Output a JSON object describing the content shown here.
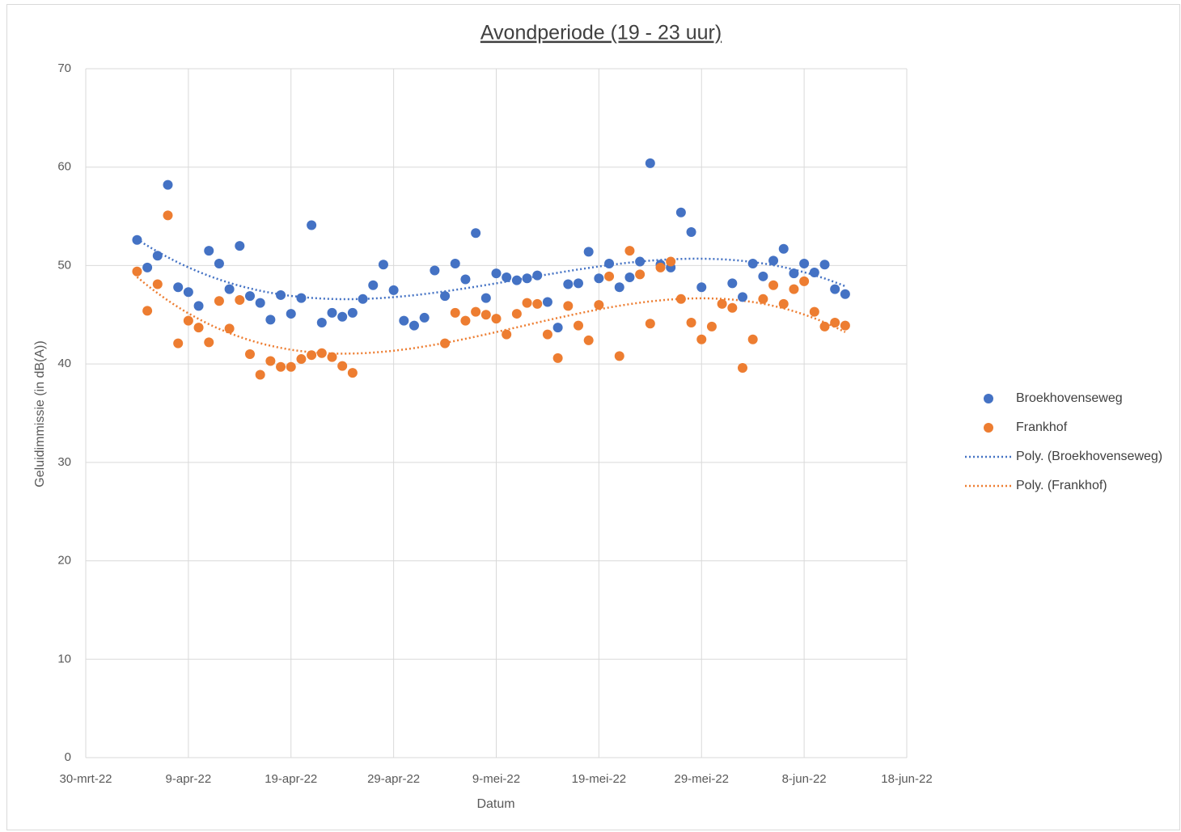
{
  "chart_data": {
    "type": "scatter",
    "title": "Avondperiode (19 - 23 uur)",
    "x_label": "Datum",
    "y_label": "Geluidimmissie (in dB(A))",
    "x": [
      "2022-04-04",
      "2022-04-05",
      "2022-04-06",
      "2022-04-07",
      "2022-04-08",
      "2022-04-09",
      "2022-04-10",
      "2022-04-11",
      "2022-04-12",
      "2022-04-13",
      "2022-04-14",
      "2022-04-15",
      "2022-04-16",
      "2022-04-17",
      "2022-04-18",
      "2022-04-19",
      "2022-04-20",
      "2022-04-21",
      "2022-04-22",
      "2022-04-23",
      "2022-04-24",
      "2022-04-25",
      "2022-04-26",
      "2022-04-27",
      "2022-04-28",
      "2022-04-29",
      "2022-04-30",
      "2022-05-01",
      "2022-05-02",
      "2022-05-03",
      "2022-05-04",
      "2022-05-05",
      "2022-05-06",
      "2022-05-07",
      "2022-05-08",
      "2022-05-09",
      "2022-05-10",
      "2022-05-11",
      "2022-05-12",
      "2022-05-13",
      "2022-05-14",
      "2022-05-15",
      "2022-05-16",
      "2022-05-17",
      "2022-05-18",
      "2022-05-19",
      "2022-05-20",
      "2022-05-21",
      "2022-05-22",
      "2022-05-23",
      "2022-05-24",
      "2022-05-25",
      "2022-05-26",
      "2022-05-27",
      "2022-05-28",
      "2022-05-29",
      "2022-05-30",
      "2022-05-31",
      "2022-06-01",
      "2022-06-02",
      "2022-06-03",
      "2022-06-04",
      "2022-06-05",
      "2022-06-06",
      "2022-06-07",
      "2022-06-08",
      "2022-06-09",
      "2022-06-10",
      "2022-06-11",
      "2022-06-12"
    ],
    "series": [
      {
        "name": "Broekhovenseweg",
        "color": "#4472c4",
        "values": [
          52.6,
          49.8,
          51.0,
          58.2,
          47.8,
          47.3,
          45.9,
          51.5,
          50.2,
          47.6,
          52.0,
          46.9,
          46.2,
          44.5,
          47.0,
          45.1,
          46.7,
          54.1,
          44.2,
          45.2,
          44.8,
          45.2,
          46.6,
          48.0,
          50.1,
          47.5,
          44.4,
          43.9,
          44.7,
          49.5,
          46.9,
          50.2,
          48.6,
          53.3,
          46.7,
          49.2,
          48.8,
          48.5,
          48.7,
          49.0,
          46.3,
          43.7,
          48.1,
          48.2,
          51.4,
          48.7,
          50.2,
          47.8,
          48.8,
          50.4,
          60.4,
          50.1,
          49.8,
          55.4,
          53.4,
          47.8,
          null,
          null,
          48.2,
          46.8,
          50.2,
          48.9,
          50.5,
          51.7,
          49.2,
          50.2,
          49.3,
          50.1,
          47.6,
          47.1
        ]
      },
      {
        "name": "Frankhof",
        "color": "#ed7d31",
        "values": [
          49.4,
          45.4,
          48.1,
          55.1,
          42.1,
          44.4,
          43.7,
          42.2,
          46.4,
          43.6,
          46.5,
          41.0,
          38.9,
          40.3,
          39.7,
          39.7,
          40.5,
          40.9,
          41.1,
          40.7,
          39.8,
          39.1,
          null,
          null,
          null,
          null,
          null,
          null,
          null,
          null,
          42.1,
          45.2,
          44.4,
          45.3,
          45.0,
          44.6,
          43.0,
          45.1,
          46.2,
          46.1,
          43.0,
          40.6,
          45.9,
          43.9,
          42.4,
          46.0,
          48.9,
          40.8,
          51.5,
          49.1,
          44.1,
          49.8,
          50.4,
          46.6,
          44.2,
          42.5,
          43.8,
          46.1,
          45.7,
          39.6,
          42.5,
          46.6,
          48.0,
          46.1,
          47.6,
          48.4,
          45.3,
          43.8,
          44.2,
          43.9
        ]
      }
    ],
    "trendlines": [
      {
        "name": "Poly. (Broekhovenseweg)",
        "series": 0,
        "color": "#4472c4",
        "order": 3
      },
      {
        "name": "Poly. (Frankhof)",
        "series": 1,
        "color": "#ed7d31",
        "order": 3
      }
    ],
    "xlim": [
      "2022-03-30",
      "2022-06-18"
    ],
    "xticks": [
      {
        "value": "2022-03-30",
        "label": "30-mrt-22"
      },
      {
        "value": "2022-04-09",
        "label": "9-apr-22"
      },
      {
        "value": "2022-04-19",
        "label": "19-apr-22"
      },
      {
        "value": "2022-04-29",
        "label": "29-apr-22"
      },
      {
        "value": "2022-05-09",
        "label": "9-mei-22"
      },
      {
        "value": "2022-05-19",
        "label": "19-mei-22"
      },
      {
        "value": "2022-05-29",
        "label": "29-mei-22"
      },
      {
        "value": "2022-06-08",
        "label": "8-jun-22"
      },
      {
        "value": "2022-06-18",
        "label": "18-jun-22"
      }
    ],
    "ylim": [
      0,
      70
    ],
    "yticks": [
      0,
      10,
      20,
      30,
      40,
      50,
      60,
      70
    ],
    "grid": true,
    "legend": "right"
  }
}
